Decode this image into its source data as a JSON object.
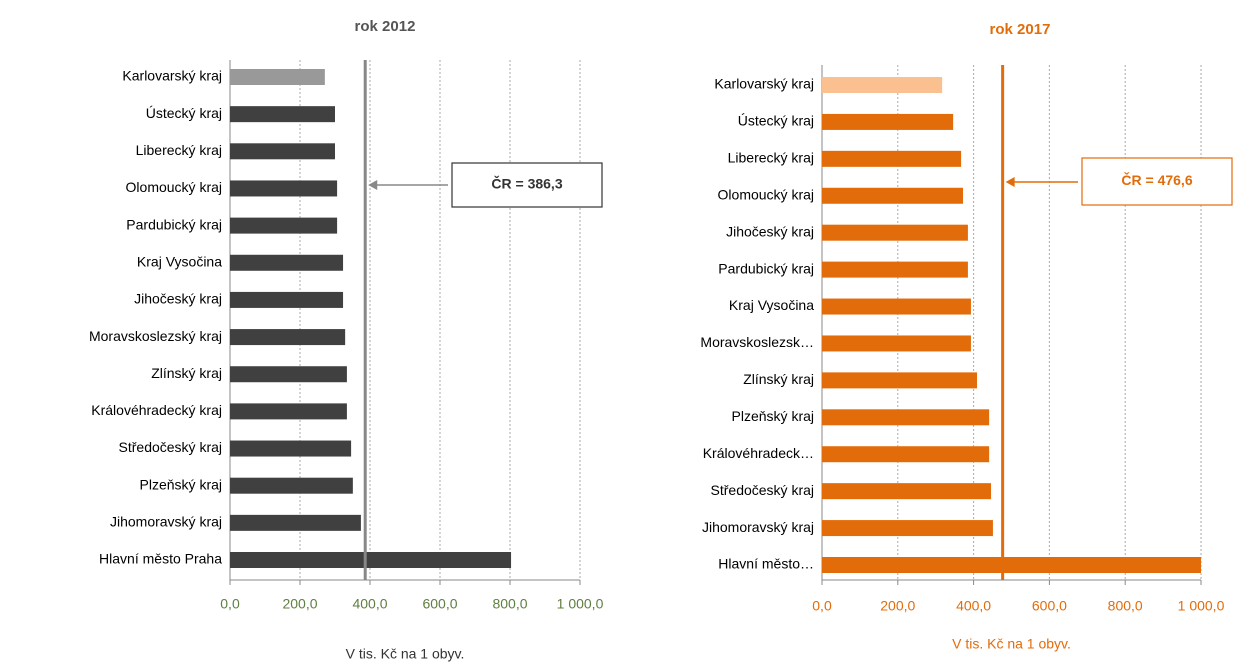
{
  "chart_data": [
    {
      "type": "barh",
      "title": "rok 2012",
      "x_label": "V tis. Kč na 1 obyv.",
      "categories": [
        "Karlovarský kraj",
        "Ústecký kraj",
        "Liberecký kraj",
        "Olomoucký kraj",
        "Pardubický kraj",
        "Kraj Vysočina",
        "Jihočeský kraj",
        "Moravskoslezský kraj",
        "Zlínský kraj",
        "Královéhradecký kraj",
        "Středočeský kraj",
        "Plzeňský kraj",
        "Jihomoravský kraj",
        "Hlavní město Praha"
      ],
      "values": [
        271,
        300,
        300,
        306,
        306,
        323,
        323,
        329,
        334,
        334,
        346,
        351,
        374,
        803
      ],
      "colors": [
        "#999999",
        "#404040",
        "#404040",
        "#404040",
        "#404040",
        "#404040",
        "#404040",
        "#404040",
        "#404040",
        "#404040",
        "#404040",
        "#404040",
        "#404040",
        "#404040"
      ],
      "xlim": [
        0,
        1000
      ],
      "xticks": [
        {
          "value": 0,
          "label": "0,0"
        },
        {
          "value": 200,
          "label": "200,0"
        },
        {
          "value": 400,
          "label": "400,0"
        },
        {
          "value": 600,
          "label": "600,0"
        },
        {
          "value": 800,
          "label": "800,0"
        },
        {
          "value": 1000,
          "label": "1 000,0"
        }
      ],
      "grid": true,
      "title_color": "#555555",
      "tick_color": "#5f7f3f",
      "reference_color": "#888888",
      "reference": {
        "value": 386.3,
        "label": "ČR = 386,3"
      }
    },
    {
      "type": "barh",
      "title": "rok 2017",
      "x_label": "V tis. Kč na 1 obyv.",
      "categories": [
        "Karlovarský kraj",
        "Ústecký kraj",
        "Liberecký kraj",
        "Olomoucký kraj",
        "Jihočeský kraj",
        "Pardubický kraj",
        "Kraj Vysočina",
        "Moravskoslezsk…",
        "Zlínský kraj",
        "Plzeňský kraj",
        "Královéhradeck…",
        "Středočeský kraj",
        "Jihomoravský kraj",
        "Hlavní město…"
      ],
      "values": [
        317,
        346,
        367,
        372,
        385,
        385,
        393,
        393,
        409,
        441,
        441,
        446,
        451,
        1000
      ],
      "colors": [
        "#fac090",
        "#e36c0a",
        "#e36c0a",
        "#e36c0a",
        "#e36c0a",
        "#e36c0a",
        "#e36c0a",
        "#e36c0a",
        "#e36c0a",
        "#e36c0a",
        "#e36c0a",
        "#e36c0a",
        "#e36c0a",
        "#e36c0a"
      ],
      "xlim": [
        0,
        1000
      ],
      "xticks": [
        {
          "value": 0,
          "label": "0,0"
        },
        {
          "value": 200,
          "label": "200,0"
        },
        {
          "value": 400,
          "label": "400,0"
        },
        {
          "value": 600,
          "label": "600,0"
        },
        {
          "value": 800,
          "label": "800,0"
        },
        {
          "value": 1000,
          "label": "1 000,0"
        }
      ],
      "grid": true,
      "title_color": "#e36c0a",
      "tick_color": "#e36c0a",
      "reference_color": "#e36c0a",
      "reference": {
        "value": 476.6,
        "label": "ČR = 476,6"
      }
    }
  ]
}
